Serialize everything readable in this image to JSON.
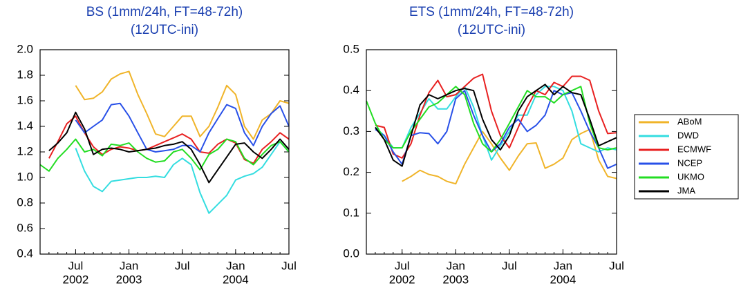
{
  "chart_data": [
    {
      "type": "line",
      "title": "BS (1mm/24h, FT=48-72h)",
      "subtitle": "(12UTC-ini)",
      "x": [
        "2002-03",
        "2002-04",
        "2002-05",
        "2002-06",
        "2002-07",
        "2002-08",
        "2002-09",
        "2002-10",
        "2002-11",
        "2002-12",
        "2003-01",
        "2003-02",
        "2003-03",
        "2003-04",
        "2003-05",
        "2003-06",
        "2003-07",
        "2003-08",
        "2003-09",
        "2003-10",
        "2003-11",
        "2003-12",
        "2004-01",
        "2004-02",
        "2004-03",
        "2004-04",
        "2004-05",
        "2004-06",
        "2004-07"
      ],
      "xlim": [
        "2002-03",
        "2004-07"
      ],
      "xticks": [
        {
          "value": "2002-07",
          "label": "Jul"
        },
        {
          "value": "2003-01",
          "label": "Jan"
        },
        {
          "value": "2003-07",
          "label": "Jul"
        },
        {
          "value": "2004-01",
          "label": "Jan"
        },
        {
          "value": "2004-07",
          "label": "Jul"
        }
      ],
      "xtick_years": [
        {
          "value": "2002-07",
          "label": "2002"
        },
        {
          "value": "2003-01",
          "label": "2003"
        },
        {
          "value": "2004-01",
          "label": "2004"
        }
      ],
      "ylim": [
        0.4,
        2.0
      ],
      "yticks": [
        0.4,
        0.6,
        0.8,
        {
          "value": 1.0,
          "label": "1.0"
        },
        1.2,
        1.4,
        1.6,
        1.8,
        {
          "value": 2.0,
          "label": "2.0"
        }
      ],
      "legend": "right",
      "series": [
        {
          "name": "ABoM",
          "color": "#f0b429",
          "values": [
            null,
            null,
            null,
            null,
            1.72,
            1.61,
            1.62,
            1.67,
            1.77,
            1.81,
            1.83,
            1.65,
            1.5,
            1.34,
            1.32,
            1.4,
            1.48,
            1.48,
            1.32,
            1.4,
            1.55,
            1.72,
            1.65,
            1.4,
            1.3,
            1.45,
            1.5,
            1.6,
            1.58
          ]
        },
        {
          "name": "DWD",
          "color": "#33dde0",
          "values": [
            null,
            null,
            null,
            null,
            1.23,
            1.05,
            0.93,
            0.89,
            0.97,
            0.98,
            0.99,
            1.0,
            1.0,
            1.01,
            1.0,
            1.1,
            1.15,
            1.1,
            0.88,
            0.72,
            0.79,
            0.86,
            0.98,
            1.01,
            1.03,
            1.08,
            1.18,
            1.28,
            1.2
          ]
        },
        {
          "name": "ECMWF",
          "color": "#e82020",
          "values": [
            null,
            1.15,
            1.28,
            1.42,
            1.48,
            1.35,
            1.24,
            1.18,
            1.22,
            1.24,
            1.23,
            1.21,
            1.22,
            1.25,
            1.28,
            1.31,
            1.34,
            1.3,
            1.2,
            1.19,
            1.26,
            1.3,
            1.27,
            1.14,
            1.11,
            1.22,
            1.28,
            1.35,
            1.3
          ]
        },
        {
          "name": "NCEP",
          "color": "#2850e8",
          "values": [
            null,
            null,
            null,
            null,
            1.45,
            1.35,
            1.4,
            1.45,
            1.57,
            1.58,
            1.48,
            1.35,
            1.22,
            1.2,
            1.21,
            1.22,
            1.25,
            1.25,
            1.2,
            1.35,
            1.46,
            1.57,
            1.54,
            1.35,
            1.25,
            1.4,
            1.5,
            1.56,
            1.4
          ]
        },
        {
          "name": "UKMO",
          "color": "#22dd22",
          "values": [
            1.1,
            1.05,
            1.15,
            1.22,
            1.3,
            1.2,
            1.22,
            1.17,
            1.26,
            1.25,
            1.27,
            1.2,
            1.15,
            1.12,
            1.13,
            1.2,
            1.22,
            1.15,
            1.06,
            1.18,
            1.22,
            1.3,
            1.28,
            1.15,
            1.1,
            1.18,
            1.25,
            1.28,
            1.2
          ]
        },
        {
          "name": "JMA",
          "color": "#000000",
          "values": [
            null,
            1.21,
            1.27,
            1.35,
            1.51,
            1.38,
            1.18,
            1.22,
            1.23,
            1.22,
            1.2,
            1.21,
            1.22,
            1.23,
            1.25,
            1.26,
            1.28,
            1.22,
            1.1,
            0.96,
            1.06,
            1.16,
            1.26,
            1.27,
            1.2,
            1.15,
            1.22,
            1.3,
            1.22
          ]
        }
      ]
    },
    {
      "type": "line",
      "title": "ETS (1mm/24h, FT=48-72h)",
      "subtitle": "(12UTC-ini)",
      "x": [
        "2002-03",
        "2002-04",
        "2002-05",
        "2002-06",
        "2002-07",
        "2002-08",
        "2002-09",
        "2002-10",
        "2002-11",
        "2002-12",
        "2003-01",
        "2003-02",
        "2003-03",
        "2003-04",
        "2003-05",
        "2003-06",
        "2003-07",
        "2003-08",
        "2003-09",
        "2003-10",
        "2003-11",
        "2003-12",
        "2004-01",
        "2004-02",
        "2004-03",
        "2004-04",
        "2004-05",
        "2004-06",
        "2004-07"
      ],
      "xlim": [
        "2002-03",
        "2004-07"
      ],
      "xticks": [
        {
          "value": "2002-07",
          "label": "Jul"
        },
        {
          "value": "2003-01",
          "label": "Jan"
        },
        {
          "value": "2003-07",
          "label": "Jul"
        },
        {
          "value": "2004-01",
          "label": "Jan"
        },
        {
          "value": "2004-07",
          "label": "Jul"
        }
      ],
      "xtick_years": [
        {
          "value": "2002-07",
          "label": "2002"
        },
        {
          "value": "2003-01",
          "label": "2003"
        },
        {
          "value": "2004-01",
          "label": "2004"
        }
      ],
      "ylim": [
        0.0,
        0.5
      ],
      "yticks": [
        {
          "value": 0.0,
          "label": "0.0"
        },
        0.1,
        0.2,
        0.3,
        0.4,
        0.5
      ],
      "series": [
        {
          "color": "#f0b429",
          "values": [
            null,
            null,
            null,
            null,
            0.178,
            0.19,
            0.205,
            0.195,
            0.19,
            0.178,
            0.172,
            0.22,
            0.26,
            0.3,
            0.27,
            0.235,
            0.205,
            0.24,
            0.27,
            0.272,
            0.21,
            0.22,
            0.235,
            0.28,
            0.295,
            0.305,
            0.23,
            0.19,
            0.185
          ]
        },
        {
          "color": "#33dde0",
          "values": [
            null,
            0.31,
            0.29,
            0.26,
            0.26,
            0.31,
            0.345,
            0.38,
            0.355,
            0.355,
            0.385,
            0.41,
            0.36,
            0.29,
            0.23,
            0.265,
            0.3,
            0.34,
            0.34,
            0.39,
            0.41,
            0.41,
            0.4,
            0.35,
            0.27,
            0.26,
            0.25,
            0.26,
            0.255
          ]
        },
        {
          "color": "#e82020",
          "values": [
            null,
            0.315,
            0.31,
            0.245,
            0.235,
            0.27,
            0.34,
            0.395,
            0.425,
            0.385,
            0.39,
            0.41,
            0.43,
            0.44,
            0.35,
            0.29,
            0.26,
            0.31,
            0.36,
            0.4,
            0.39,
            0.42,
            0.41,
            0.435,
            0.435,
            0.425,
            0.35,
            0.295,
            0.297
          ]
        },
        {
          "color": "#2850e8",
          "values": [
            null,
            0.305,
            0.29,
            0.25,
            0.22,
            0.29,
            0.297,
            0.295,
            0.27,
            0.3,
            0.38,
            0.4,
            0.34,
            0.29,
            0.25,
            0.27,
            0.31,
            0.33,
            0.3,
            0.315,
            0.34,
            0.4,
            0.39,
            0.395,
            0.35,
            0.3,
            0.26,
            0.21,
            0.22
          ]
        },
        {
          "color": "#22dd22",
          "values": [
            0.375,
            0.32,
            0.28,
            0.26,
            0.26,
            0.3,
            0.33,
            0.36,
            0.37,
            0.39,
            0.41,
            0.39,
            0.32,
            0.27,
            0.25,
            0.28,
            0.32,
            0.36,
            0.4,
            0.385,
            0.385,
            0.37,
            0.39,
            0.4,
            0.41,
            0.32,
            0.26,
            0.255,
            0.26
          ]
        },
        {
          "color": "#000000",
          "values": [
            null,
            0.31,
            0.28,
            0.23,
            0.215,
            0.29,
            0.365,
            0.39,
            0.38,
            0.39,
            0.4,
            0.405,
            0.4,
            0.33,
            0.28,
            0.255,
            0.29,
            0.35,
            0.385,
            0.4,
            0.415,
            0.39,
            0.41,
            0.395,
            0.39,
            0.33,
            0.265,
            0.275,
            0.285
          ]
        }
      ]
    }
  ]
}
